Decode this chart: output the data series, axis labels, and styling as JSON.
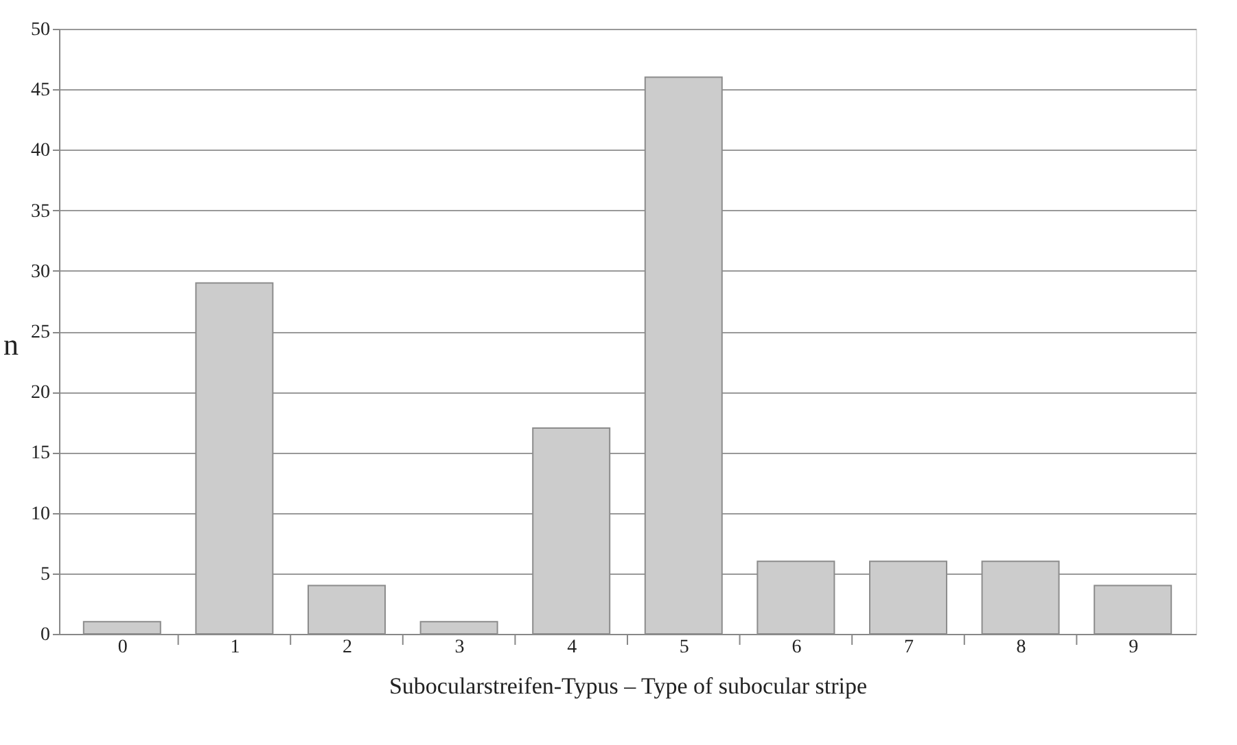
{
  "chart_data": {
    "type": "bar",
    "xlabel": "Subocularstreifen-Typus – Type of subocular stripe",
    "ylabel": "n",
    "categories": [
      "0",
      "1",
      "2",
      "3",
      "4",
      "5",
      "6",
      "7",
      "8",
      "9"
    ],
    "values": [
      1,
      29,
      4,
      1,
      17,
      46,
      6,
      6,
      6,
      4
    ],
    "color": "#cccccc",
    "ylim": [
      0,
      50
    ],
    "yticks": [
      0,
      5,
      10,
      15,
      20,
      25,
      30,
      35,
      40,
      45,
      50
    ],
    "grid": "y"
  }
}
